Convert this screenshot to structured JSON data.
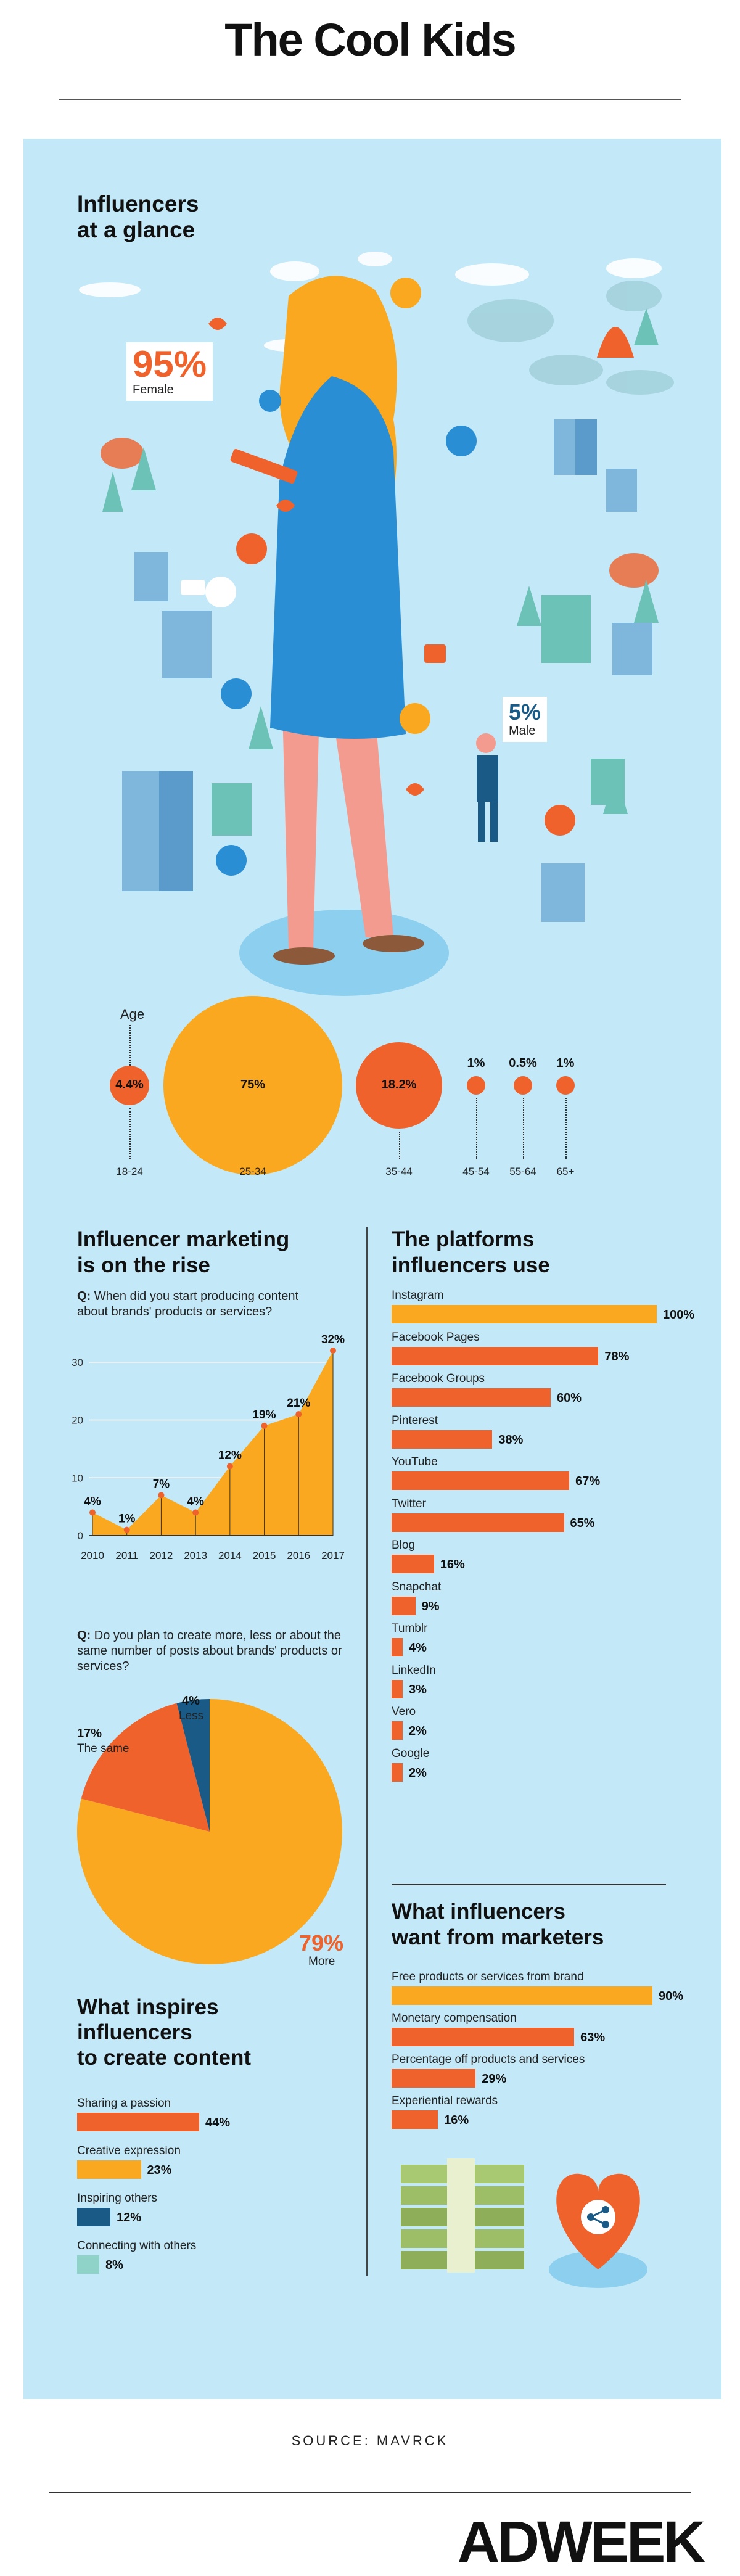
{
  "header": {
    "title": "The Cool Kids"
  },
  "glance": {
    "title_line1": "Influencers",
    "title_line2": "at a glance",
    "female_pct": "95%",
    "female_label": "Female",
    "male_pct": "5%",
    "male_label": "Male"
  },
  "age": {
    "title": "Age",
    "groups": [
      {
        "label": "18-24",
        "value": "4.4%",
        "pct": 4.4
      },
      {
        "label": "25-34",
        "value": "75%",
        "pct": 75
      },
      {
        "label": "35-44",
        "value": "18.2%",
        "pct": 18.2
      },
      {
        "label": "45-54",
        "value": "1%",
        "pct": 1
      },
      {
        "label": "55-64",
        "value": "0.5%",
        "pct": 0.5
      },
      {
        "label": "65+",
        "value": "1%",
        "pct": 1
      }
    ]
  },
  "rise": {
    "title_line1": "Influencer marketing",
    "title_line2": "is on the rise",
    "question_q": "Q:",
    "question": "When did you start producing content about brands' products or services?"
  },
  "plan": {
    "question_q": "Q:",
    "question": "Do you plan to create more, less or about the same number of posts about brands' products or services?",
    "more_pct": "79%",
    "more_label": "More",
    "same_pct": "17%",
    "same_label": "The same",
    "less_pct": "4%",
    "less_label": "Less"
  },
  "inspires": {
    "title_line1": "What inspires",
    "title_line2": "influencers",
    "title_line3": "to create content"
  },
  "platforms": {
    "title_line1": "The platforms",
    "title_line2": "influencers use"
  },
  "wants": {
    "title_line1": "What influencers",
    "title_line2": "want from marketers"
  },
  "footer": {
    "source": "SOURCE: MAVRCK",
    "logo": "ADWEEK"
  },
  "colors": {
    "orange": "#f0622b",
    "yellow": "#f9a81f",
    "navy": "#1a5a86",
    "teal": "#8fd3c8",
    "panel": "#c3e8f8",
    "blue_dress": "#2a8ed4"
  },
  "chart_data": [
    {
      "type": "line",
      "title": "Influencer marketing is on the rise",
      "x": [
        "2010",
        "2011",
        "2012",
        "2013",
        "2014",
        "2015",
        "2016",
        "2017"
      ],
      "values": [
        4,
        1,
        7,
        4,
        12,
        19,
        21,
        32
      ],
      "labels": [
        "4%",
        "1%",
        "7%",
        "4%",
        "12%",
        "19%",
        "21%",
        "32%"
      ],
      "yticks": [
        "0",
        "10",
        "20",
        "30"
      ],
      "ylim": [
        0,
        32
      ]
    },
    {
      "type": "pie",
      "categories": [
        "More",
        "The same",
        "Less"
      ],
      "values": [
        79,
        17,
        4
      ]
    },
    {
      "type": "bar",
      "title": "The platforms influencers use",
      "categories": [
        "Instagram",
        "Facebook Pages",
        "Facebook Groups",
        "Pinterest",
        "YouTube",
        "Twitter",
        "Blog",
        "Snapchat",
        "Tumblr",
        "LinkedIn",
        "Vero",
        "Google"
      ],
      "values": [
        100,
        78,
        60,
        38,
        67,
        65,
        16,
        9,
        4,
        3,
        2,
        2
      ],
      "labels": [
        "100%",
        "78%",
        "60%",
        "38%",
        "67%",
        "65%",
        "16%",
        "9%",
        "4%",
        "3%",
        "2%",
        "2%"
      ]
    },
    {
      "type": "bar",
      "title": "What influencers want from marketers",
      "categories": [
        "Free products or services from brand",
        "Monetary compensation",
        "Percentage off products and services",
        "Experiential rewards"
      ],
      "values": [
        90,
        63,
        29,
        16
      ],
      "labels": [
        "90%",
        "63%",
        "29%",
        "16%"
      ]
    },
    {
      "type": "bar",
      "title": "What inspires influencers to create content",
      "categories": [
        "Sharing a passion",
        "Creative expression",
        "Inspiring others",
        "Connecting with others"
      ],
      "values": [
        44,
        23,
        12,
        8
      ],
      "labels": [
        "44%",
        "23%",
        "12%",
        "8%"
      ]
    }
  ]
}
